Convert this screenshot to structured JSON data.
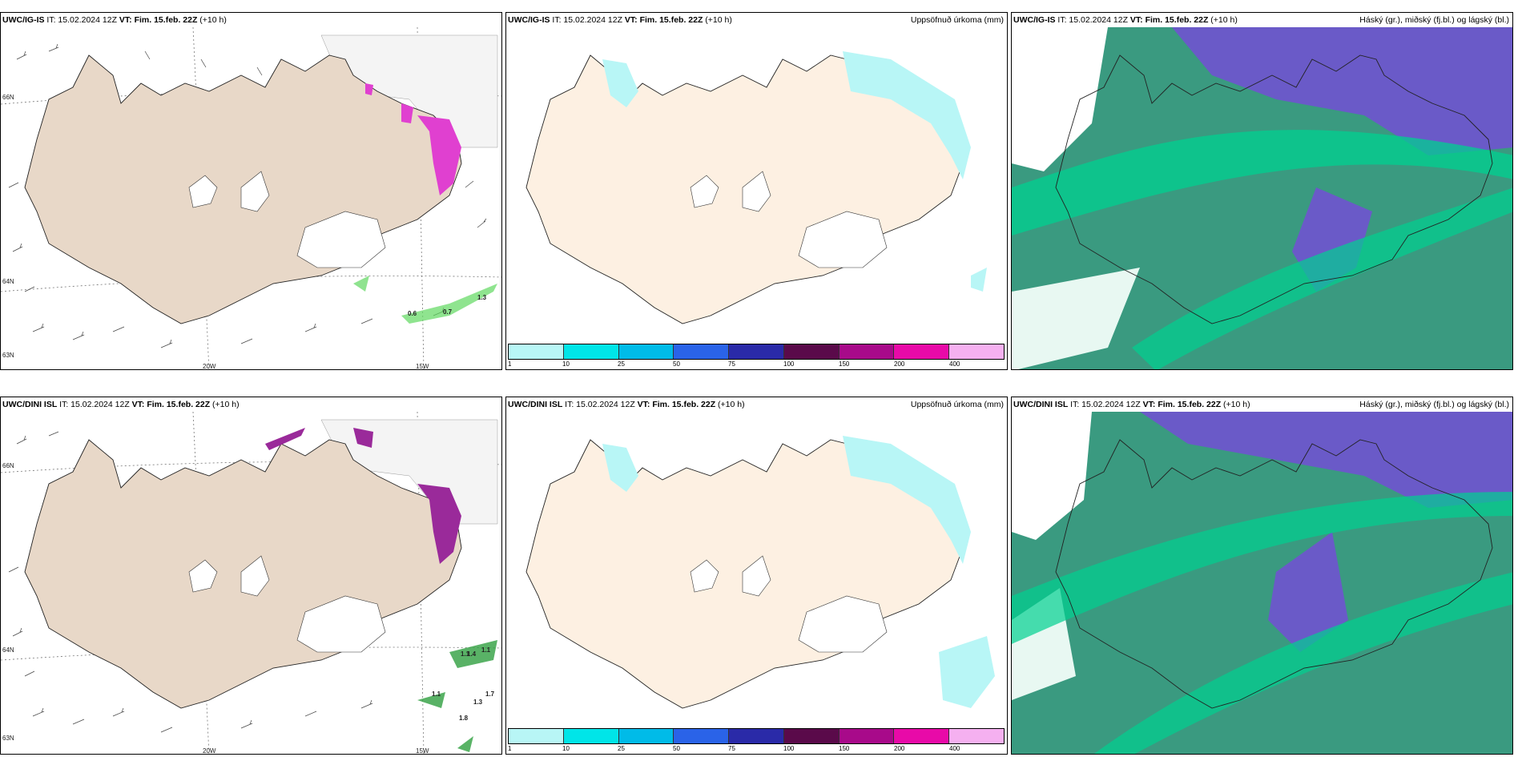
{
  "rows": [
    {
      "model": "UWC/IG-IS",
      "it": "IT: 15.02.2024 12Z",
      "vt_label": "VT:",
      "vt": "Fim. 15.feb. 22Z",
      "lead": "(+10 h)"
    },
    {
      "model": "UWC/DINI ISL",
      "it": "IT: 15.02.2024 12Z",
      "vt_label": "VT:",
      "vt": "Fim. 15.feb. 22Z",
      "lead": "(+10 h)"
    }
  ],
  "precip_title": "Uppsöfnuð úrkoma (mm)",
  "cloud_title": "Háský (gr.), miðský (fj.bl.) og lágský (bl.)",
  "axis_labels": {
    "lon_20w": "20W",
    "lon_15w": "15W",
    "lat_66n": "66N",
    "lat_64n": "64N",
    "lat_63n": "63N"
  },
  "wind_values_top": [
    "0.6",
    "0.7",
    "1.3"
  ],
  "wind_values_bottom": [
    "1.1",
    "1.1",
    "1.7",
    "1.3",
    "1.8",
    "1.1",
    "1.4"
  ],
  "colorbar": {
    "ticks": [
      "1",
      "10",
      "25",
      "50",
      "75",
      "100",
      "150",
      "200",
      "400"
    ],
    "colors": [
      "#b8f6f6",
      "#00e5e8",
      "#00bbe8",
      "#2a63e8",
      "#2a2aa8",
      "#5a0a4a",
      "#a80a8a",
      "#e80aa8",
      "#f5b0f0"
    ]
  },
  "colors": {
    "land": "#e8d8c8",
    "land_precip": "#fdf0e2",
    "glacier": "#ffffff",
    "sea": "#ffffff",
    "snow": "#e040d0",
    "precip_light": "#b8f6f6",
    "cloud_high": "#6a5ac8",
    "cloud_mid": "#3aa070",
    "cloud_low": "#00d090"
  }
}
